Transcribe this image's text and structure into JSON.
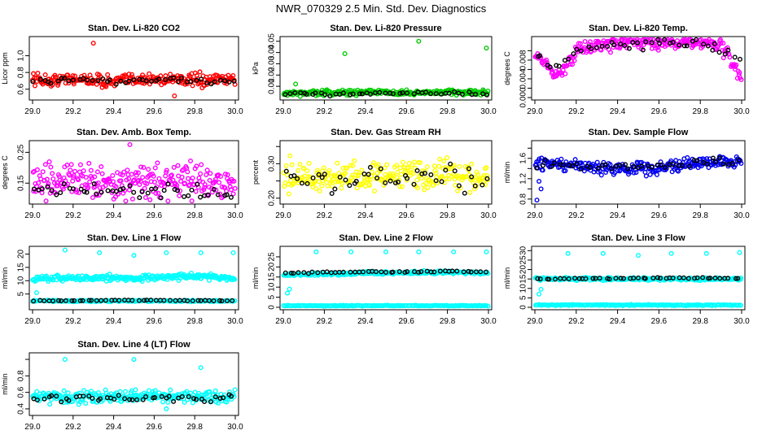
{
  "main_title": "NWR_070329  2.5 Min. Std. Dev. Diagnostics",
  "chart_data": [
    {
      "type": "scatter",
      "title": "Stan. Dev. Li-820 CO2",
      "ylabel": "Licor ppm",
      "xlim": [
        29.0,
        30.0
      ],
      "ylim": [
        0.5,
        1.2
      ],
      "xticks": [
        29.0,
        29.2,
        29.4,
        29.6,
        29.8,
        30.0
      ],
      "xtick_labels": [
        "29.0",
        "29.2",
        "29.4",
        "29.6",
        "29.8",
        "30.0"
      ],
      "yticks": [
        0.6,
        0.8,
        1.0
      ],
      "ytick_labels": [
        "0.6",
        "0.8",
        "1.0"
      ],
      "series": [
        {
          "name": "colored",
          "color": "#ff0000",
          "x": [
            29.0,
            29.1,
            29.2,
            29.3,
            29.4,
            29.5,
            29.6,
            29.7,
            29.8,
            29.9,
            30.0
          ],
          "y": [
            0.72,
            0.7,
            0.73,
            0.71,
            0.69,
            0.72,
            0.71,
            0.73,
            0.7,
            0.71,
            0.72
          ],
          "spread": 0.08,
          "outliers": [
            [
              29.3,
              1.15
            ],
            [
              29.7,
              0.52
            ]
          ]
        },
        {
          "name": "black",
          "color": "#000000",
          "x": [
            29.0,
            29.2,
            29.4,
            29.6,
            29.8,
            30.0
          ],
          "y": [
            0.7,
            0.72,
            0.7,
            0.71,
            0.7,
            0.69
          ],
          "spread": 0.04
        }
      ]
    },
    {
      "type": "scatter",
      "title": "Stan. Dev. Li-820 Pressure",
      "ylabel": "kPa",
      "xlim": [
        29.0,
        30.0
      ],
      "ylim": [
        0.0,
        0.052
      ],
      "xticks": [
        29.0,
        29.2,
        29.4,
        29.6,
        29.8,
        30.0
      ],
      "xtick_labels": [
        "29.0",
        "29.2",
        "29.4",
        "29.6",
        "29.8",
        "30.0"
      ],
      "yticks": [
        0.01,
        0.02,
        0.03,
        0.04,
        0.05
      ],
      "ytick_labels": [
        "0.01",
        "0.02",
        "0.03",
        "0.04",
        "0.05"
      ],
      "series": [
        {
          "name": "colored",
          "color": "#00cc00",
          "x": [
            29.0,
            29.2,
            29.4,
            29.6,
            29.8,
            30.0
          ],
          "y": [
            0.004,
            0.004,
            0.005,
            0.004,
            0.005,
            0.004
          ],
          "spread": 0.0025,
          "outliers": [
            [
              29.3,
              0.039
            ],
            [
              29.66,
              0.05
            ],
            [
              29.99,
              0.044
            ],
            [
              29.06,
              0.012
            ]
          ]
        },
        {
          "name": "black",
          "color": "#000000",
          "x": [
            29.0,
            29.2,
            29.4,
            29.6,
            29.8,
            30.0
          ],
          "y": [
            0.003,
            0.003,
            0.004,
            0.004,
            0.004,
            0.003
          ],
          "spread": 0.0015
        }
      ]
    },
    {
      "type": "scatter",
      "title": "Stan. Dev. Li-820 Temp.",
      "ylabel": "degrees C",
      "xlim": [
        29.0,
        30.0
      ],
      "ylim": [
        0.0,
        0.0125
      ],
      "xticks": [
        29.0,
        29.2,
        29.4,
        29.6,
        29.8,
        30.0
      ],
      "xtick_labels": [
        "29.0",
        "29.2",
        "29.4",
        "29.6",
        "29.8",
        "30.0"
      ],
      "yticks": [
        0.0,
        0.002,
        0.004,
        0.006,
        0.008,
        0.01
      ],
      "ytick_labels": [
        "0.000",
        "",
        "0.004",
        "",
        "0.008",
        ""
      ],
      "series": [
        {
          "name": "colored",
          "color": "#ff00ff",
          "x": [
            29.0,
            29.05,
            29.1,
            29.15,
            29.2,
            29.3,
            29.4,
            29.5,
            29.6,
            29.7,
            29.8,
            29.9,
            29.95,
            30.0
          ],
          "y": [
            0.009,
            0.007,
            0.005,
            0.006,
            0.01,
            0.011,
            0.0115,
            0.0118,
            0.0118,
            0.0119,
            0.012,
            0.011,
            0.008,
            0.004
          ],
          "spread": 0.0015
        },
        {
          "name": "black",
          "color": "#000000",
          "x": [
            29.0,
            29.1,
            29.2,
            29.4,
            29.6,
            29.8,
            29.95
          ],
          "y": [
            0.009,
            0.006,
            0.01,
            0.0115,
            0.0118,
            0.0118,
            0.009
          ],
          "spread": 0.0012
        }
      ]
    },
    {
      "type": "scatter",
      "title": "Stan. Dev. Amb. Box Temp.",
      "ylabel": "degrees C",
      "xlim": [
        29.0,
        30.0
      ],
      "ylim": [
        0.09,
        0.28
      ],
      "xticks": [
        29.0,
        29.2,
        29.4,
        29.6,
        29.8,
        30.0
      ],
      "xtick_labels": [
        "29.0",
        "29.2",
        "29.4",
        "29.6",
        "29.8",
        "30.0"
      ],
      "yticks": [
        0.15,
        0.25
      ],
      "ytick_labels": [
        "0.15",
        "0.25"
      ],
      "series": [
        {
          "name": "colored",
          "color": "#ff00ff",
          "x": [
            29.0,
            29.2,
            29.4,
            29.6,
            29.8,
            30.0
          ],
          "y": [
            0.15,
            0.16,
            0.15,
            0.15,
            0.16,
            0.15
          ],
          "spread": 0.055,
          "outliers": [
            [
              29.48,
              0.275
            ]
          ]
        },
        {
          "name": "black",
          "color": "#000000",
          "x": [
            29.0,
            29.2,
            29.4,
            29.6,
            29.8,
            30.0
          ],
          "y": [
            0.13,
            0.13,
            0.12,
            0.13,
            0.12,
            0.12
          ],
          "spread": 0.025
        }
      ]
    },
    {
      "type": "scatter",
      "title": "Stan. Dev. Gas Stream RH",
      "ylabel": "percent",
      "xlim": [
        29.0,
        30.0
      ],
      "ylim": [
        0.19,
        0.36
      ],
      "xticks": [
        29.0,
        29.2,
        29.4,
        29.6,
        29.8,
        30.0
      ],
      "xtick_labels": [
        "29.0",
        "29.2",
        "29.4",
        "29.6",
        "29.8",
        "30.0"
      ],
      "yticks": [
        0.2,
        0.25,
        0.3,
        0.35
      ],
      "ytick_labels": [
        "0.20",
        "",
        "0.30",
        ""
      ],
      "series": [
        {
          "name": "colored",
          "color": "#ffff00",
          "x": [
            29.0,
            29.2,
            29.4,
            29.6,
            29.8,
            30.0
          ],
          "y": [
            0.26,
            0.26,
            0.26,
            0.27,
            0.27,
            0.26
          ],
          "spread": 0.045
        },
        {
          "name": "black",
          "color": "#000000",
          "x": [
            29.0,
            29.2,
            29.4,
            29.6,
            29.8,
            30.0
          ],
          "y": [
            0.25,
            0.25,
            0.26,
            0.26,
            0.26,
            0.25
          ],
          "spread": 0.035
        }
      ]
    },
    {
      "type": "scatter",
      "title": "Stan. Dev. Sample Flow",
      "ylabel": "ml/min",
      "xlim": [
        29.0,
        30.0
      ],
      "ylim": [
        0.75,
        1.9
      ],
      "xticks": [
        29.0,
        29.2,
        29.4,
        29.6,
        29.8,
        30.0
      ],
      "xtick_labels": [
        "29.0",
        "29.2",
        "29.4",
        "29.6",
        "29.8",
        "30.0"
      ],
      "yticks": [
        0.8,
        1.0,
        1.2,
        1.4,
        1.6,
        1.8
      ],
      "ytick_labels": [
        "0.8",
        "",
        "1.2",
        "",
        "1.6",
        ""
      ],
      "series": [
        {
          "name": "colored",
          "color": "#0000ee",
          "x": [
            29.0,
            29.2,
            29.4,
            29.6,
            29.8,
            30.0
          ],
          "y": [
            1.5,
            1.45,
            1.4,
            1.42,
            1.5,
            1.55
          ],
          "spread": 0.13,
          "outliers": [
            [
              29.01,
              0.78
            ],
            [
              29.03,
              1.0
            ],
            [
              29.02,
              1.15
            ]
          ]
        },
        {
          "name": "black",
          "color": "#000000",
          "x": [
            29.0,
            29.2,
            29.4,
            29.6,
            29.8,
            30.0
          ],
          "y": [
            1.5,
            1.45,
            1.42,
            1.45,
            1.5,
            1.55
          ],
          "spread": 0.09
        }
      ]
    },
    {
      "type": "scatter",
      "title": "Stan. Dev. Line 1 Flow",
      "ylabel": "ml/min",
      "xlim": [
        29.0,
        30.0
      ],
      "ylim": [
        0.0,
        22.0
      ],
      "xticks": [
        29.0,
        29.2,
        29.4,
        29.6,
        29.8,
        30.0
      ],
      "xtick_labels": [
        "29.0",
        "29.2",
        "29.4",
        "29.6",
        "29.8",
        "30.0"
      ],
      "yticks": [
        5,
        10,
        15,
        20
      ],
      "ytick_labels": [
        "5",
        "10",
        "15",
        "20"
      ],
      "series": [
        {
          "name": "colored",
          "color": "#00ffff",
          "x": [
            29.0,
            29.2,
            29.4,
            29.6,
            29.8,
            30.0
          ],
          "y": [
            10.5,
            11.0,
            11.0,
            11.2,
            11.8,
            11.0
          ],
          "spread": 1.1,
          "outliers": [
            [
              29.16,
              21.5
            ],
            [
              29.33,
              20.5
            ],
            [
              29.5,
              19.5
            ],
            [
              29.66,
              20.5
            ],
            [
              29.83,
              20.5
            ],
            [
              29.99,
              20.5
            ],
            [
              29.02,
              5.5
            ]
          ]
        },
        {
          "name": "cyan-low",
          "color": "#00ffff",
          "x": [
            29.0,
            30.0
          ],
          "y": [
            2.4,
            2.4
          ],
          "spread": 0.3
        },
        {
          "name": "black",
          "color": "#000000",
          "x": [
            29.0,
            29.2,
            29.4,
            29.6,
            29.8,
            30.0
          ],
          "y": [
            2.4,
            2.5,
            2.6,
            2.6,
            2.5,
            2.4
          ],
          "spread": 0.15
        }
      ]
    },
    {
      "type": "scatter",
      "title": "Stan. Dev. Line 2 Flow",
      "ylabel": "ml/min",
      "xlim": [
        29.0,
        30.0
      ],
      "ylim": [
        0.0,
        29.0
      ],
      "xticks": [
        29.0,
        29.2,
        29.4,
        29.6,
        29.8,
        30.0
      ],
      "xtick_labels": [
        "29.0",
        "29.2",
        "29.4",
        "29.6",
        "29.8",
        "30.0"
      ],
      "yticks": [
        0,
        5,
        10,
        15,
        20,
        25
      ],
      "ytick_labels": [
        "0",
        "5",
        "10",
        "15",
        "20",
        "25"
      ],
      "series": [
        {
          "name": "colored",
          "color": "#00ffff",
          "x": [
            29.0,
            29.2,
            29.4,
            29.6,
            29.8,
            30.0
          ],
          "y": [
            16.0,
            16.5,
            17.0,
            17.0,
            17.5,
            17.0
          ],
          "spread": 0.8,
          "outliers": [
            [
              29.16,
              27.5
            ],
            [
              29.33,
              27.5
            ],
            [
              29.5,
              27.5
            ],
            [
              29.66,
              27.5
            ],
            [
              29.83,
              27.5
            ],
            [
              29.99,
              27.5
            ],
            [
              29.02,
              7.0
            ],
            [
              29.03,
              9.0
            ]
          ]
        },
        {
          "name": "cyan-low",
          "color": "#00ffff",
          "x": [
            29.0,
            30.0
          ],
          "y": [
            0.8,
            0.8
          ],
          "spread": 0.25
        },
        {
          "name": "black",
          "color": "#000000",
          "x": [
            29.0,
            29.2,
            29.4,
            29.6,
            29.8,
            30.0
          ],
          "y": [
            17.0,
            17.2,
            17.5,
            17.5,
            17.8,
            17.5
          ],
          "spread": 0.3
        }
      ]
    },
    {
      "type": "scatter",
      "title": "Stan. Dev. Line 3 Flow",
      "ylabel": "ml/min",
      "xlim": [
        29.0,
        30.0
      ],
      "ylim": [
        0.0,
        31.0
      ],
      "xticks": [
        29.0,
        29.2,
        29.4,
        29.6,
        29.8,
        30.0
      ],
      "xtick_labels": [
        "29.0",
        "29.2",
        "29.4",
        "29.6",
        "29.8",
        "30.0"
      ],
      "yticks": [
        0,
        5,
        10,
        15,
        20,
        25,
        30
      ],
      "ytick_labels": [
        "0",
        "5",
        "10",
        "15",
        "20",
        "25",
        "30"
      ],
      "series": [
        {
          "name": "colored",
          "color": "#00ffff",
          "x": [
            29.0,
            29.2,
            29.4,
            29.6,
            29.8,
            30.0
          ],
          "y": [
            15.0,
            15.0,
            15.0,
            15.0,
            15.0,
            15.0
          ],
          "spread": 0.8,
          "outliers": [
            [
              29.16,
              28.5
            ],
            [
              29.33,
              28.5
            ],
            [
              29.5,
              27.5
            ],
            [
              29.66,
              28.5
            ],
            [
              29.83,
              28.5
            ],
            [
              29.99,
              29.0
            ],
            [
              29.02,
              7.0
            ],
            [
              29.03,
              9.5
            ]
          ]
        },
        {
          "name": "cyan-low",
          "color": "#00ffff",
          "x": [
            29.0,
            30.0
          ],
          "y": [
            1.2,
            1.2
          ],
          "spread": 0.3
        },
        {
          "name": "black",
          "color": "#000000",
          "x": [
            29.0,
            29.2,
            29.4,
            29.6,
            29.8,
            30.0
          ],
          "y": [
            15.0,
            15.2,
            15.3,
            15.5,
            15.5,
            15.2
          ],
          "spread": 0.3
        }
      ]
    },
    {
      "type": "scatter",
      "title": "Stan. Dev. Line 4 (LT) Flow",
      "ylabel": "ml/min",
      "xlim": [
        29.0,
        30.0
      ],
      "ylim": [
        0.35,
        1.05
      ],
      "xticks": [
        29.0,
        29.2,
        29.4,
        29.6,
        29.8,
        30.0
      ],
      "xtick_labels": [
        "29.0",
        "29.2",
        "29.4",
        "29.6",
        "29.8",
        "30.0"
      ],
      "yticks": [
        0.4,
        0.6,
        0.8,
        1.0
      ],
      "ytick_labels": [
        "0.4",
        "0.6",
        "0.8",
        ""
      ],
      "series": [
        {
          "name": "colored",
          "color": "#00ffff",
          "x": [
            29.0,
            29.2,
            29.4,
            29.6,
            29.8,
            30.0
          ],
          "y": [
            0.55,
            0.54,
            0.55,
            0.55,
            0.54,
            0.55
          ],
          "spread": 0.08,
          "outliers": [
            [
              29.16,
              1.0
            ],
            [
              29.5,
              1.0
            ],
            [
              29.83,
              0.9
            ],
            [
              29.66,
              0.4
            ]
          ]
        },
        {
          "name": "black",
          "color": "#000000",
          "x": [
            29.0,
            29.2,
            29.4,
            29.6,
            29.8,
            30.0
          ],
          "y": [
            0.53,
            0.54,
            0.53,
            0.54,
            0.53,
            0.54
          ],
          "spread": 0.05
        }
      ]
    }
  ]
}
